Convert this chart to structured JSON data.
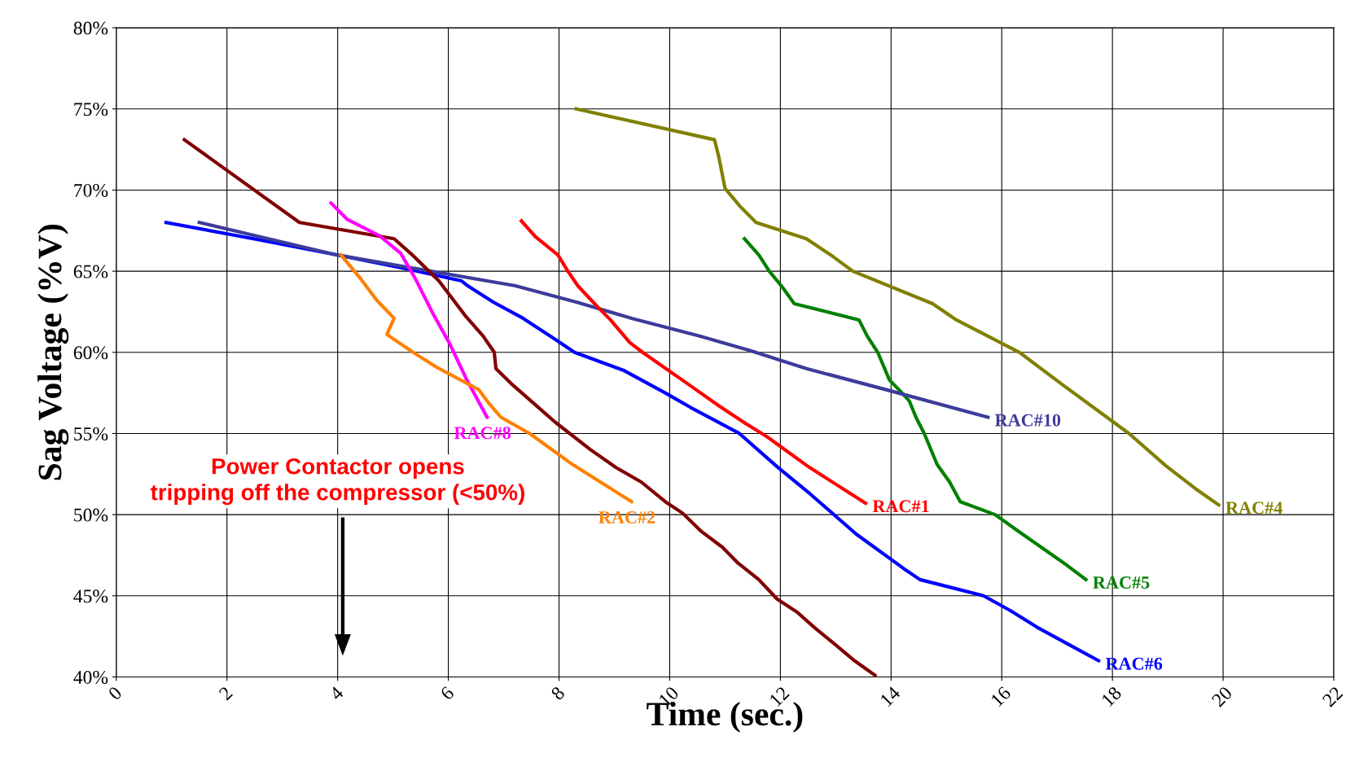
{
  "chart_data": {
    "type": "line",
    "xlabel": "Time (sec.)",
    "ylabel": "Sag Voltage (%V)",
    "xlim": [
      0,
      22
    ],
    "xticks": [
      0,
      2,
      4,
      6,
      8,
      10,
      12,
      14,
      16,
      18,
      20,
      22
    ],
    "ylim": [
      40,
      80
    ],
    "yticks": [
      {
        "value": 40,
        "label": "40%"
      },
      {
        "value": 45,
        "label": "45%"
      },
      {
        "value": 50,
        "label": "50%"
      },
      {
        "value": 55,
        "label": "55%"
      },
      {
        "value": 60,
        "label": "60%"
      },
      {
        "value": 65,
        "label": "65%"
      },
      {
        "value": 70,
        "label": "70%"
      },
      {
        "value": 75,
        "label": "75%"
      },
      {
        "value": 80,
        "label": "80%"
      }
    ],
    "grid": true,
    "legend": false,
    "marker": "none",
    "line_style": "solid",
    "series": [
      {
        "name": "RAC#4",
        "color": "#808000",
        "x": [
          8.31,
          10.81,
          10.89,
          11.0,
          11.27,
          11.56,
          12.47,
          12.91,
          13.31,
          14.75,
          15.18,
          16.32,
          17.1,
          17.9,
          18.3,
          18.97,
          19.5,
          19.92
        ],
        "values": [
          75,
          73.1,
          72,
          70.1,
          69,
          68,
          67,
          66,
          65,
          63,
          62,
          60,
          58,
          56,
          55,
          53,
          51.6,
          50.6
        ]
      },
      {
        "name": "RAC#5",
        "color": "#008000",
        "x": [
          11.35,
          11.61,
          11.8,
          12.04,
          12.25,
          13.42,
          13.57,
          13.76,
          13.97,
          14.17,
          14.33,
          14.45,
          14.6,
          14.83,
          15.06,
          15.25,
          15.88,
          16.29,
          16.71,
          17.13,
          17.52
        ],
        "values": [
          67,
          66,
          65,
          64,
          63,
          62,
          61,
          60,
          58.3,
          57.6,
          57,
          56,
          55,
          53.1,
          52,
          50.8,
          50,
          49,
          48,
          47,
          46
        ]
      },
      {
        "name": "RAC#6",
        "color": "#0000ff",
        "x": [
          0.9,
          2.48,
          4.0,
          5.17,
          6.24,
          6.35,
          6.81,
          7.35,
          7.93,
          8.28,
          9.16,
          9.92,
          10.38,
          11.26,
          11.96,
          12.53,
          13.37,
          14.22,
          14.52,
          15.67,
          16.15,
          16.67,
          17.21,
          17.75
        ],
        "values": [
          68,
          67,
          66,
          65.2,
          64.4,
          64.1,
          63.1,
          62.1,
          60.8,
          60,
          58.9,
          57.5,
          56.6,
          55,
          52.9,
          51.3,
          48.8,
          46.7,
          46,
          45,
          44.1,
          43,
          42,
          41
        ]
      },
      {
        "name": "RAC#10",
        "color": "#3c3c9c",
        "x": [
          1.5,
          3.99,
          7.21,
          8.31,
          9.31,
          10.54,
          11.46,
          12.47,
          13.91,
          15.75
        ],
        "values": [
          68,
          66,
          64.1,
          63.1,
          62.1,
          61,
          60.1,
          59,
          57.7,
          56
        ]
      },
      {
        "color": "#800000",
        "x": [
          1.23,
          3.31,
          5.02,
          5.35,
          5.83,
          6.32,
          6.63,
          6.83,
          6.86,
          7.16,
          7.93,
          8.57,
          9.03,
          9.49,
          9.92,
          10.23,
          10.56,
          10.95,
          11.24,
          11.61,
          11.94,
          12.3,
          12.63,
          12.99,
          13.34,
          13.71
        ],
        "values": [
          73.1,
          68,
          67,
          66,
          64.4,
          62.2,
          61,
          60,
          59,
          58,
          55.7,
          54,
          52.9,
          52,
          50.8,
          50.1,
          49,
          48,
          47,
          46,
          44.8,
          44,
          43,
          42,
          41,
          40.1
        ]
      },
      {
        "name": "RAC#8",
        "color": "#ff00ff",
        "x": [
          3.88,
          4.17,
          4.75,
          5.14,
          5.41,
          5.72,
          6.03,
          6.32,
          6.7
        ],
        "values": [
          69.2,
          68.2,
          67.2,
          66.1,
          64.5,
          62.4,
          60.5,
          58.4,
          56
        ]
      },
      {
        "name": "RAC#2",
        "color": "#ff8000",
        "x": [
          4.06,
          4.4,
          4.71,
          5.02,
          4.89,
          5.32,
          5.78,
          6.55,
          6.7,
          6.95,
          7.47,
          8.24,
          9.31
        ],
        "values": [
          66,
          64.6,
          63.2,
          62.1,
          61.1,
          60.1,
          59.1,
          57.7,
          57,
          56,
          55,
          53.1,
          50.8
        ]
      },
      {
        "name": "RAC#1",
        "color": "#ff0000",
        "x": [
          7.32,
          7.58,
          7.98,
          8.16,
          8.34,
          8.67,
          8.93,
          9.28,
          9.51,
          10.35,
          10.89,
          11.38,
          11.76,
          12.53,
          13.54
        ],
        "values": [
          68.1,
          67.1,
          66,
          65,
          64.1,
          62.9,
          62,
          60.6,
          60,
          58,
          56.7,
          55.6,
          54.8,
          52.9,
          50.7
        ]
      }
    ],
    "annotations": [
      "Power Contactor opens\ntripping off the compressor (<50%)"
    ]
  }
}
